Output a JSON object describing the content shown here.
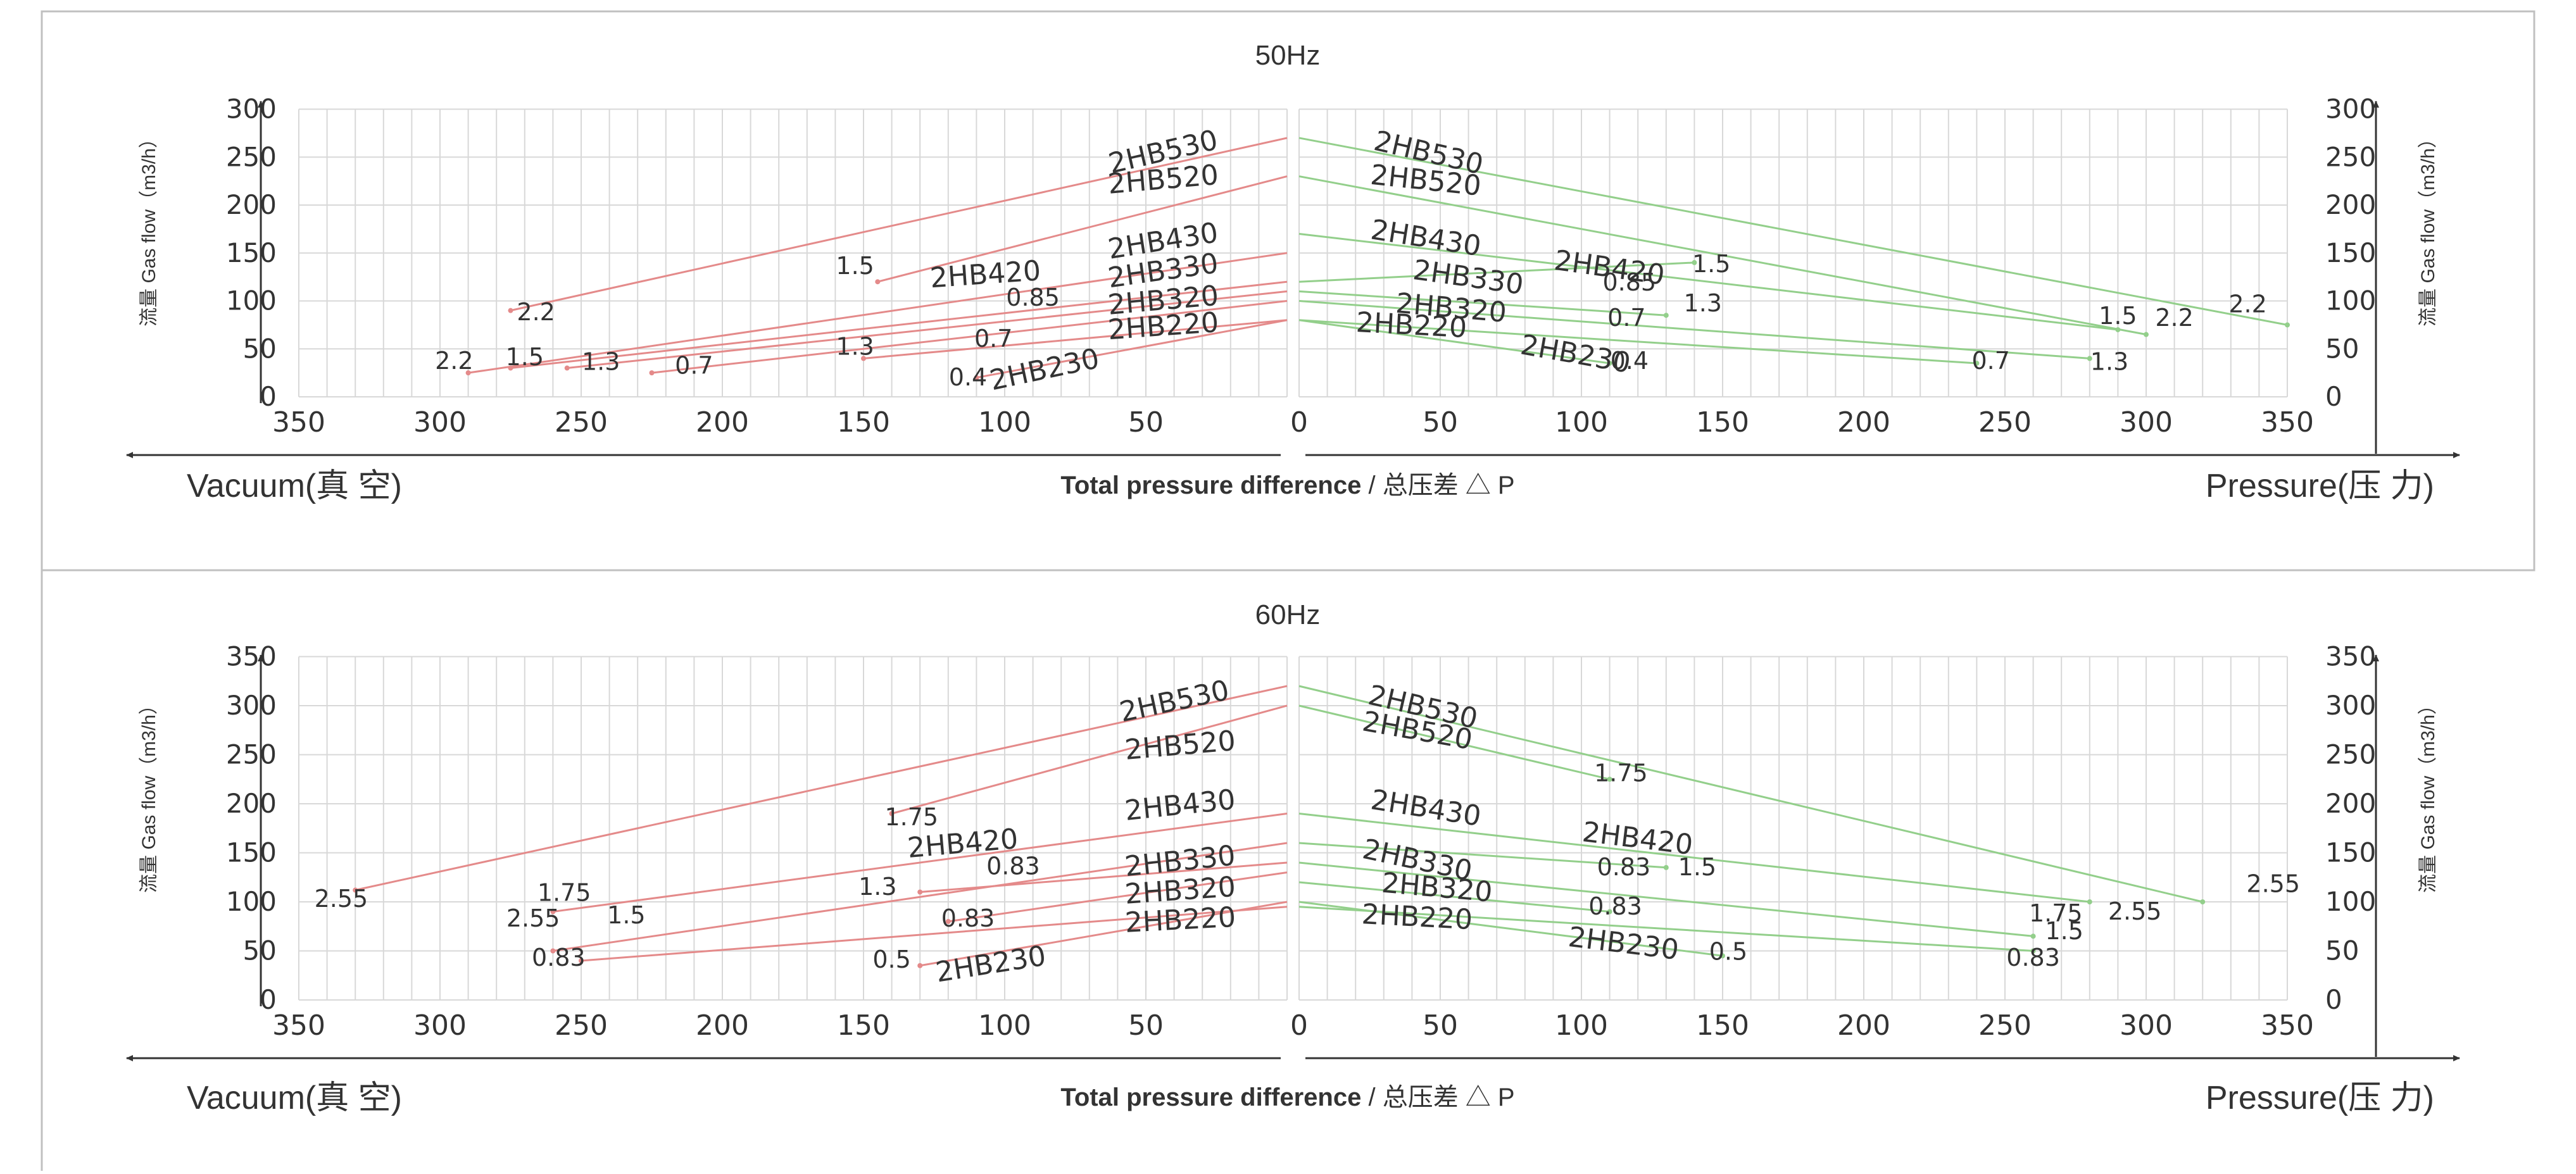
{
  "colors": {
    "vacuum_line": "#e48a8a",
    "pressure_line": "#93cf8b",
    "grid": "#d8d8d8",
    "axis": "#333333",
    "text": "#333333",
    "panel_border": "#c0c0c0"
  },
  "icons": [
    "arrow-left-icon",
    "arrow-right-icon",
    "arrow-up-icon"
  ],
  "chart_data": [
    {
      "type": "line",
      "title": "50Hz",
      "xlabel_left": "Vacuum(真 空)",
      "xlabel_center": "Total pressure difference",
      "xlabel_center_cn": "/ 总压差 △ P",
      "xlabel_right": "Pressure(压 力)",
      "ylabel": "流量 Gas flow（m3/h）",
      "x_ticks_vacuum": [
        "350",
        "300",
        "250",
        "200",
        "150",
        "100",
        "50"
      ],
      "x_ticks_pressure": [
        "0",
        "50",
        "100",
        "150",
        "200",
        "250",
        "300",
        "350"
      ],
      "xlim": [
        0,
        350
      ],
      "ylim": [
        0,
        300
      ],
      "y_ticks": [
        "0",
        "50",
        "100",
        "150",
        "200",
        "250",
        "300"
      ],
      "grid": true,
      "vacuum_series": [
        {
          "name": "2HB530",
          "x": [
            0,
            275
          ],
          "y": [
            270,
            90
          ]
        },
        {
          "name": "2HB520",
          "x": [
            0,
            145
          ],
          "y": [
            230,
            120
          ]
        },
        {
          "name": "2HB430",
          "x": [
            0,
            290
          ],
          "y": [
            150,
            25
          ]
        },
        {
          "name": "2HB420",
          "x": [
            0,
            275
          ],
          "y": [
            120,
            30
          ]
        },
        {
          "name": "2HB330",
          "x": [
            0,
            255
          ],
          "y": [
            110,
            30
          ]
        },
        {
          "name": "2HB320",
          "x": [
            0,
            225
          ],
          "y": [
            100,
            25
          ]
        },
        {
          "name": "2HB230",
          "x": [
            0,
            150
          ],
          "y": [
            80,
            40
          ]
        },
        {
          "name": "2HB220",
          "x": [
            0,
            110
          ],
          "y": [
            80,
            20
          ]
        }
      ],
      "pressure_series": [
        {
          "name": "2HB530",
          "x": [
            0,
            350
          ],
          "y": [
            270,
            75
          ]
        },
        {
          "name": "2HB520",
          "x": [
            0,
            300
          ],
          "y": [
            230,
            65
          ]
        },
        {
          "name": "2HB430",
          "x": [
            0,
            290
          ],
          "y": [
            170,
            70
          ]
        },
        {
          "name": "2HB420",
          "x": [
            0,
            140
          ],
          "y": [
            120,
            140
          ]
        },
        {
          "name": "2HB330",
          "x": [
            0,
            130
          ],
          "y": [
            110,
            85
          ]
        },
        {
          "name": "2HB320",
          "x": [
            0,
            280
          ],
          "y": [
            100,
            40
          ]
        },
        {
          "name": "2HB230",
          "x": [
            0,
            240
          ],
          "y": [
            80,
            35
          ]
        },
        {
          "name": "2HB220",
          "x": [
            0,
            110
          ],
          "y": [
            80,
            35
          ]
        }
      ],
      "annotations_vacuum": [
        {
          "text": "2.2",
          "x": 266,
          "y": 80
        },
        {
          "text": "2.2",
          "x": 295,
          "y": 29
        },
        {
          "text": "1.5",
          "x": 270,
          "y": 33
        },
        {
          "text": "1.3",
          "x": 243,
          "y": 28
        },
        {
          "text": "0.7",
          "x": 210,
          "y": 24
        },
        {
          "text": "1.5",
          "x": 153,
          "y": 128
        },
        {
          "text": "1.3",
          "x": 153,
          "y": 44
        },
        {
          "text": "0.85",
          "x": 90,
          "y": 95
        },
        {
          "text": "0.7",
          "x": 104,
          "y": 52
        },
        {
          "text": "0.4",
          "x": 113,
          "y": 12
        }
      ],
      "annotations_pressure": [
        {
          "text": "1.5",
          "x": 146,
          "y": 130
        },
        {
          "text": "0.85",
          "x": 117,
          "y": 111
        },
        {
          "text": "1.3",
          "x": 143,
          "y": 89
        },
        {
          "text": "0.7",
          "x": 116,
          "y": 74
        },
        {
          "text": "0.4",
          "x": 117,
          "y": 29
        },
        {
          "text": "0.7",
          "x": 245,
          "y": 29
        },
        {
          "text": "1.3",
          "x": 287,
          "y": 28
        },
        {
          "text": "1.5",
          "x": 290,
          "y": 76
        },
        {
          "text": "2.2",
          "x": 310,
          "y": 74
        },
        {
          "text": "2.2",
          "x": 336,
          "y": 88
        }
      ],
      "series_labels_vacuum": [
        {
          "text": "2HB530",
          "x": 24,
          "y": 259,
          "angle": -13
        },
        {
          "text": "2HB520",
          "x": 24,
          "y": 222,
          "angle": -5
        },
        {
          "text": "2HB430",
          "x": 24,
          "y": 162,
          "angle": -9
        },
        {
          "text": "2HB420",
          "x": 87,
          "y": 122,
          "angle": -4
        },
        {
          "text": "2HB330",
          "x": 24,
          "y": 130,
          "angle": -8
        },
        {
          "text": "2HB320",
          "x": 24,
          "y": 96,
          "angle": -5
        },
        {
          "text": "2HB220",
          "x": 24,
          "y": 68,
          "angle": -4
        },
        {
          "text": "2HB230",
          "x": 66,
          "y": 31,
          "angle": -12
        }
      ],
      "series_labels_pressure": [
        {
          "text": "2HB530",
          "x": 26,
          "y": 258,
          "angle": 13
        },
        {
          "text": "2HB520",
          "x": 25,
          "y": 222,
          "angle": 6
        },
        {
          "text": "2HB430",
          "x": 25,
          "y": 165,
          "angle": 9
        },
        {
          "text": "2HB420",
          "x": 90,
          "y": 133,
          "angle": 8
        },
        {
          "text": "2HB330",
          "x": 40,
          "y": 123,
          "angle": 8
        },
        {
          "text": "2HB320",
          "x": 34,
          "y": 88,
          "angle": 5
        },
        {
          "text": "2HB220",
          "x": 20,
          "y": 68,
          "angle": 3
        },
        {
          "text": "2HB230",
          "x": 78,
          "y": 45,
          "angle": 10
        }
      ]
    },
    {
      "type": "line",
      "title": "60Hz",
      "xlabel_left": "Vacuum(真 空)",
      "xlabel_center": "Total pressure difference",
      "xlabel_center_cn": "/ 总压差 △ P",
      "xlabel_right": "Pressure(压 力)",
      "ylabel": "流量 Gas flow（m3/h）",
      "x_ticks_vacuum": [
        "350",
        "300",
        "250",
        "200",
        "150",
        "100",
        "50"
      ],
      "x_ticks_pressure": [
        "0",
        "50",
        "100",
        "150",
        "200",
        "250",
        "300",
        "350"
      ],
      "xlim": [
        0,
        350
      ],
      "ylim": [
        0,
        350
      ],
      "y_ticks": [
        "0",
        "50",
        "100",
        "150",
        "200",
        "250",
        "300",
        "350"
      ],
      "grid": true,
      "vacuum_series": [
        {
          "name": "2HB530",
          "x": [
            0,
            330
          ],
          "y": [
            320,
            112
          ]
        },
        {
          "name": "2HB520",
          "x": [
            0,
            140
          ],
          "y": [
            300,
            190
          ]
        },
        {
          "name": "2HB430",
          "x": [
            0,
            260
          ],
          "y": [
            190,
            90
          ]
        },
        {
          "name": "2HB420",
          "x": [
            0,
            260
          ],
          "y": [
            160,
            50
          ]
        },
        {
          "name": "2HB330",
          "x": [
            0,
            130
          ],
          "y": [
            140,
            110
          ]
        },
        {
          "name": "2HB320",
          "x": [
            0,
            120
          ],
          "y": [
            130,
            80
          ]
        },
        {
          "name": "2HB230",
          "x": [
            0,
            130
          ],
          "y": [
            100,
            35
          ]
        },
        {
          "name": "2HB220",
          "x": [
            0,
            250
          ],
          "y": [
            95,
            40
          ]
        }
      ],
      "pressure_series": [
        {
          "name": "2HB530",
          "x": [
            0,
            320
          ],
          "y": [
            320,
            100
          ]
        },
        {
          "name": "2HB520",
          "x": [
            0,
            110
          ],
          "y": [
            300,
            225
          ]
        },
        {
          "name": "2HB430",
          "x": [
            0,
            280
          ],
          "y": [
            190,
            100
          ]
        },
        {
          "name": "2HB420",
          "x": [
            0,
            130
          ],
          "y": [
            160,
            135
          ]
        },
        {
          "name": "2HB330",
          "x": [
            0,
            260
          ],
          "y": [
            140,
            65
          ]
        },
        {
          "name": "2HB320",
          "x": [
            0,
            110
          ],
          "y": [
            120,
            90
          ]
        },
        {
          "name": "2HB230",
          "x": [
            0,
            150
          ],
          "y": [
            100,
            45
          ]
        },
        {
          "name": "2HB220",
          "x": [
            0,
            260
          ],
          "y": [
            95,
            50
          ]
        }
      ],
      "annotations_vacuum": [
        {
          "text": "2.55",
          "x": 335,
          "y": 95
        },
        {
          "text": "1.75",
          "x": 256,
          "y": 101
        },
        {
          "text": "2.55",
          "x": 267,
          "y": 75
        },
        {
          "text": "1.5",
          "x": 234,
          "y": 78
        },
        {
          "text": "0.83",
          "x": 258,
          "y": 35
        },
        {
          "text": "1.75",
          "x": 133,
          "y": 178
        },
        {
          "text": "1.3",
          "x": 145,
          "y": 107
        },
        {
          "text": "0.83",
          "x": 97,
          "y": 128
        },
        {
          "text": "0.83",
          "x": 113,
          "y": 75
        },
        {
          "text": "0.5",
          "x": 140,
          "y": 33
        }
      ],
      "annotations_pressure": [
        {
          "text": "1.75",
          "x": 114,
          "y": 223
        },
        {
          "text": "0.83",
          "x": 115,
          "y": 127
        },
        {
          "text": "1.5",
          "x": 141,
          "y": 127
        },
        {
          "text": "0.83",
          "x": 112,
          "y": 87
        },
        {
          "text": "0.5",
          "x": 152,
          "y": 41
        },
        {
          "text": "1.75",
          "x": 268,
          "y": 80
        },
        {
          "text": "1.5",
          "x": 271,
          "y": 62
        },
        {
          "text": "2.55",
          "x": 296,
          "y": 82
        },
        {
          "text": "0.83",
          "x": 260,
          "y": 35
        },
        {
          "text": "2.55",
          "x": 345,
          "y": 110
        }
      ],
      "series_labels_vacuum": [
        {
          "text": "2HB530",
          "x": 20,
          "y": 307,
          "angle": -12
        },
        {
          "text": "2HB520",
          "x": 18,
          "y": 255,
          "angle": -5
        },
        {
          "text": "2HB430",
          "x": 18,
          "y": 195,
          "angle": -6
        },
        {
          "text": "2HB420",
          "x": 95,
          "y": 155,
          "angle": -5
        },
        {
          "text": "2HB330",
          "x": 18,
          "y": 138,
          "angle": -6
        },
        {
          "text": "2HB320",
          "x": 18,
          "y": 106,
          "angle": -4
        },
        {
          "text": "2HB220",
          "x": 18,
          "y": 75,
          "angle": -3
        },
        {
          "text": "2HB230",
          "x": 85,
          "y": 36,
          "angle": -9
        }
      ],
      "series_labels_pressure": [
        {
          "text": "2HB530",
          "x": 24,
          "y": 302,
          "angle": 13
        },
        {
          "text": "2HB520",
          "x": 22,
          "y": 275,
          "angle": 10
        },
        {
          "text": "2HB430",
          "x": 25,
          "y": 195,
          "angle": 9
        },
        {
          "text": "2HB420",
          "x": 100,
          "y": 162,
          "angle": 7
        },
        {
          "text": "2HB330",
          "x": 22,
          "y": 145,
          "angle": 12
        },
        {
          "text": "2HB320",
          "x": 29,
          "y": 110,
          "angle": 5
        },
        {
          "text": "2HB220",
          "x": 22,
          "y": 78,
          "angle": 3
        },
        {
          "text": "2HB230",
          "x": 95,
          "y": 55,
          "angle": 7
        }
      ]
    }
  ]
}
